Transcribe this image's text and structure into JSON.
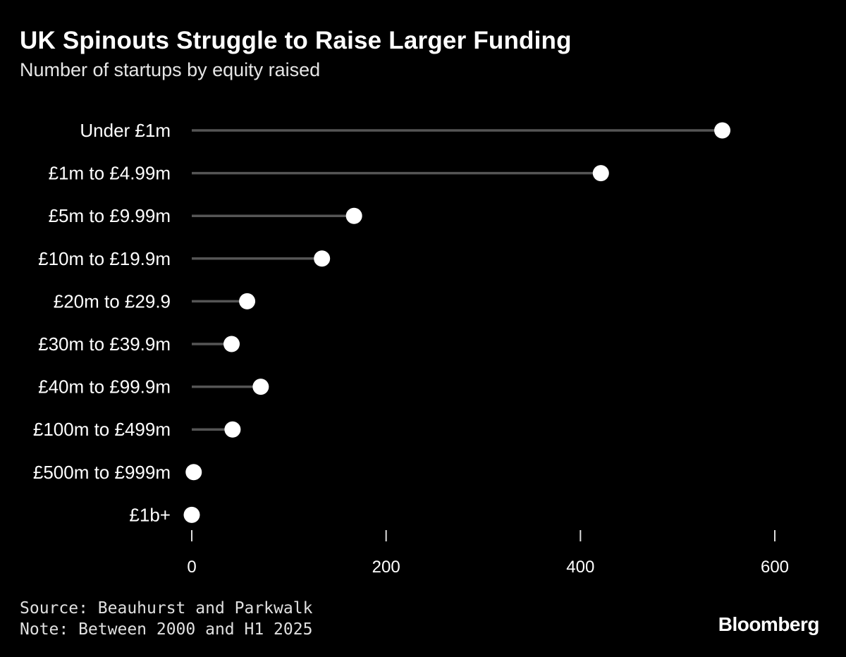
{
  "header": {
    "title": "UK Spinouts Struggle to Raise Larger Funding",
    "subtitle": "Number of startups by equity raised"
  },
  "footer": {
    "source": "Source: Beauhurst and Parkwalk",
    "note": "Note: Between 2000 and H1 2025",
    "brand": "Bloomberg"
  },
  "colors": {
    "background": "#000000",
    "stem": "#555555",
    "dot": "#ffffff",
    "text": "#ffffff",
    "axis": "#dddddd"
  },
  "chart_data": {
    "type": "lollipop",
    "orientation": "horizontal",
    "title": "UK Spinouts Struggle to Raise Larger Funding",
    "subtitle": "Number of startups by equity raised",
    "categories": [
      "Under £1m",
      "£1m to £4.99m",
      "£5m to £9.99m",
      "£10m to £19.9m",
      "£20m to £29.9",
      "£30m to £39.9m",
      "£40m to £99.9m",
      "£100m to £499m",
      "£500m to £999m",
      "£1b+"
    ],
    "values": [
      546,
      421,
      167,
      134,
      57,
      41,
      71,
      42,
      2,
      0
    ],
    "xlim": [
      0,
      600
    ],
    "xticks": [
      0,
      200,
      400,
      600
    ],
    "xlabel": "",
    "ylabel": "",
    "grid": false,
    "legend": "none"
  }
}
